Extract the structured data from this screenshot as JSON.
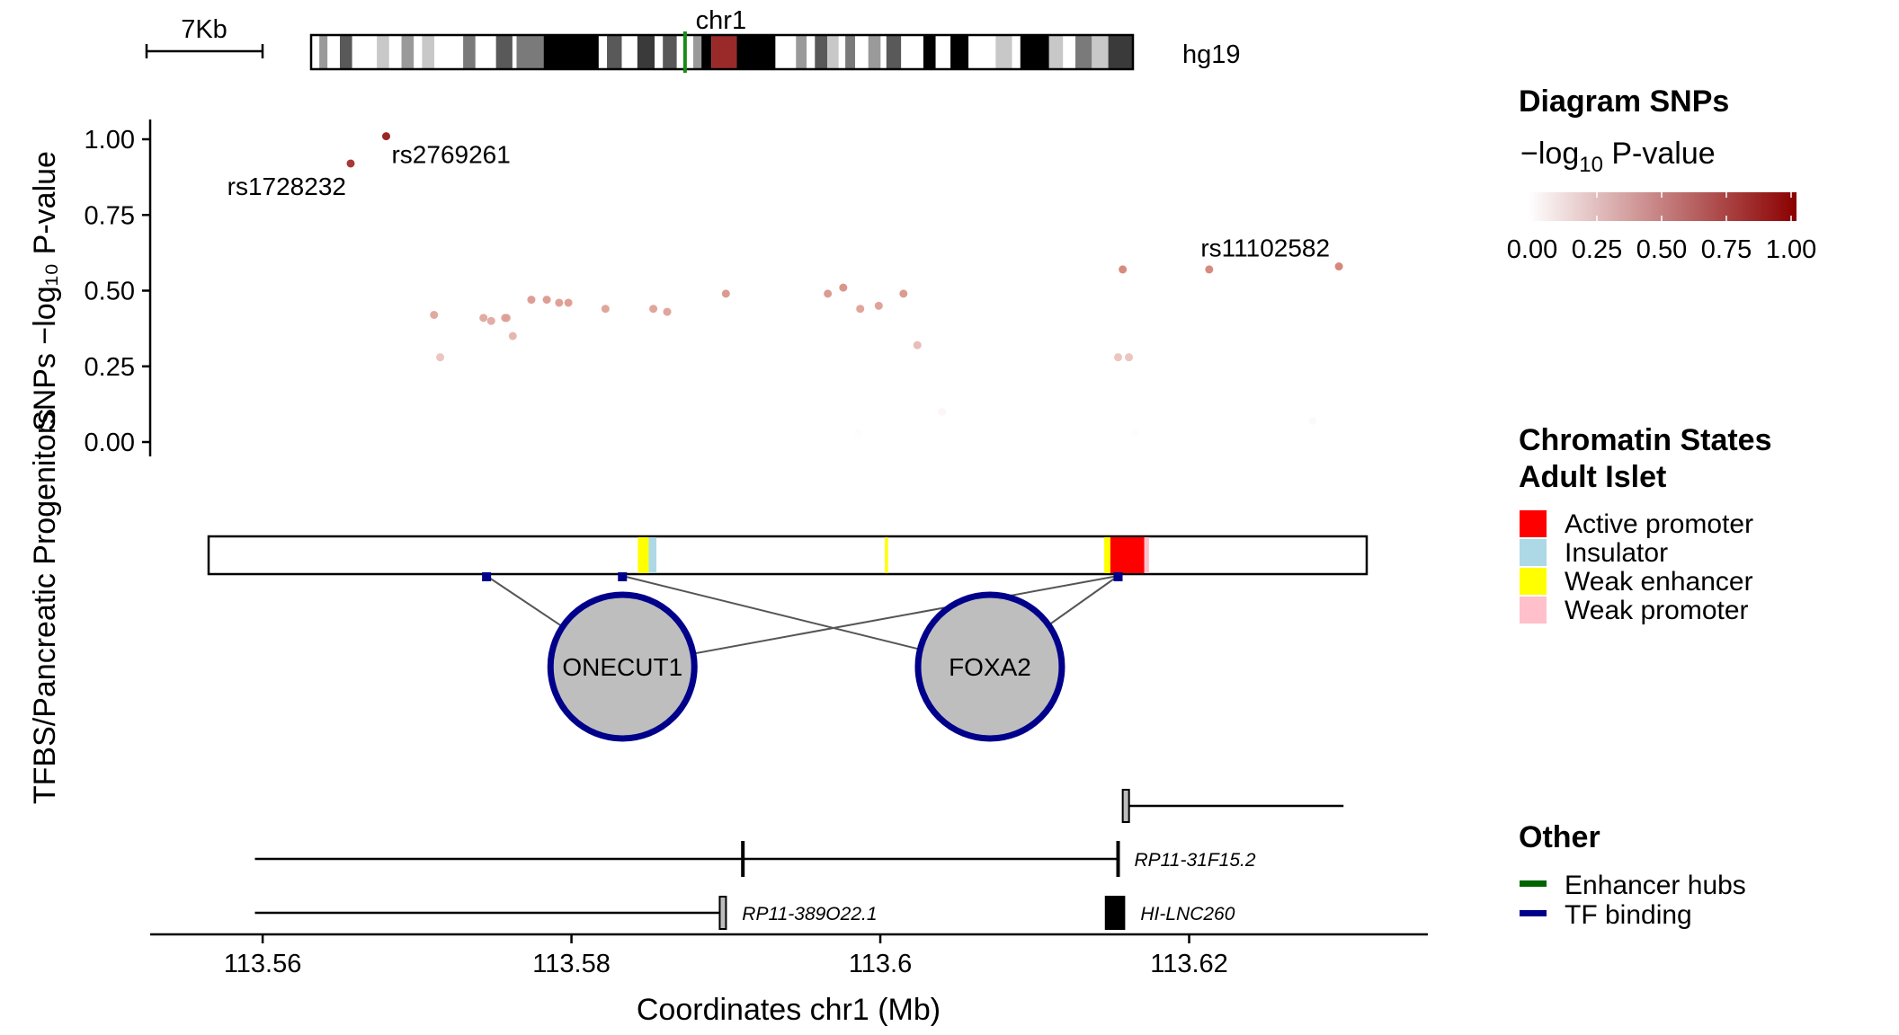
{
  "chart_data": {
    "type": "scatter",
    "ideogram": {
      "chromosome": "chr1",
      "genome": "hg19",
      "scale_bar_label": "7Kb",
      "bands": [
        {
          "s": 0.0,
          "e": 0.01,
          "c": "#ffffff"
        },
        {
          "s": 0.01,
          "e": 0.02,
          "c": "#9a9a9a"
        },
        {
          "s": 0.02,
          "e": 0.035,
          "c": "#ffffff"
        },
        {
          "s": 0.035,
          "e": 0.05,
          "c": "#595959"
        },
        {
          "s": 0.05,
          "e": 0.08,
          "c": "#ffffff"
        },
        {
          "s": 0.08,
          "e": 0.095,
          "c": "#c8c8c8"
        },
        {
          "s": 0.095,
          "e": 0.11,
          "c": "#ffffff"
        },
        {
          "s": 0.11,
          "e": 0.125,
          "c": "#9a9a9a"
        },
        {
          "s": 0.125,
          "e": 0.135,
          "c": "#ffffff"
        },
        {
          "s": 0.135,
          "e": 0.15,
          "c": "#c8c8c8"
        },
        {
          "s": 0.15,
          "e": 0.185,
          "c": "#ffffff"
        },
        {
          "s": 0.185,
          "e": 0.2,
          "c": "#7a7a7a"
        },
        {
          "s": 0.2,
          "e": 0.225,
          "c": "#ffffff"
        },
        {
          "s": 0.225,
          "e": 0.245,
          "c": "#595959"
        },
        {
          "s": 0.245,
          "e": 0.25,
          "c": "#ffffff"
        },
        {
          "s": 0.25,
          "e": 0.283,
          "c": "#7a7a7a"
        },
        {
          "s": 0.283,
          "e": 0.35,
          "c": "#000000"
        },
        {
          "s": 0.35,
          "e": 0.36,
          "c": "#ffffff"
        },
        {
          "s": 0.36,
          "e": 0.378,
          "c": "#595959"
        },
        {
          "s": 0.378,
          "e": 0.397,
          "c": "#ffffff"
        },
        {
          "s": 0.397,
          "e": 0.418,
          "c": "#3a3a3a"
        },
        {
          "s": 0.418,
          "e": 0.428,
          "c": "#ffffff"
        },
        {
          "s": 0.428,
          "e": 0.445,
          "c": "#595959"
        },
        {
          "s": 0.445,
          "e": 0.465,
          "c": "#ffffff"
        },
        {
          "s": 0.465,
          "e": 0.475,
          "c": "#9a9a9a"
        },
        {
          "s": 0.475,
          "e": 0.487,
          "c": "#000000"
        },
        {
          "s": 0.487,
          "e": 0.518,
          "c": "#9a2a2a"
        },
        {
          "s": 0.518,
          "e": 0.565,
          "c": "#000000"
        },
        {
          "s": 0.565,
          "e": 0.59,
          "c": "#ffffff"
        },
        {
          "s": 0.59,
          "e": 0.603,
          "c": "#9a9a9a"
        },
        {
          "s": 0.603,
          "e": 0.613,
          "c": "#ffffff"
        },
        {
          "s": 0.613,
          "e": 0.628,
          "c": "#595959"
        },
        {
          "s": 0.628,
          "e": 0.642,
          "c": "#c8c8c8"
        },
        {
          "s": 0.642,
          "e": 0.65,
          "c": "#ffffff"
        },
        {
          "s": 0.65,
          "e": 0.662,
          "c": "#7a7a7a"
        },
        {
          "s": 0.662,
          "e": 0.678,
          "c": "#ffffff"
        },
        {
          "s": 0.678,
          "e": 0.693,
          "c": "#9a9a9a"
        },
        {
          "s": 0.693,
          "e": 0.7,
          "c": "#ffffff"
        },
        {
          "s": 0.7,
          "e": 0.718,
          "c": "#595959"
        },
        {
          "s": 0.718,
          "e": 0.745,
          "c": "#ffffff"
        },
        {
          "s": 0.745,
          "e": 0.76,
          "c": "#000000"
        },
        {
          "s": 0.76,
          "e": 0.778,
          "c": "#ffffff"
        },
        {
          "s": 0.778,
          "e": 0.8,
          "c": "#000000"
        },
        {
          "s": 0.8,
          "e": 0.833,
          "c": "#ffffff"
        },
        {
          "s": 0.833,
          "e": 0.853,
          "c": "#c8c8c8"
        },
        {
          "s": 0.853,
          "e": 0.863,
          "c": "#ffffff"
        },
        {
          "s": 0.863,
          "e": 0.898,
          "c": "#000000"
        },
        {
          "s": 0.898,
          "e": 0.915,
          "c": "#c8c8c8"
        },
        {
          "s": 0.915,
          "e": 0.93,
          "c": "#ffffff"
        },
        {
          "s": 0.93,
          "e": 0.95,
          "c": "#7a7a7a"
        },
        {
          "s": 0.95,
          "e": 0.97,
          "c": "#c8c8c8"
        },
        {
          "s": 0.97,
          "e": 1.0,
          "c": "#3a3a3a"
        }
      ],
      "marker_fraction": 0.455,
      "marker_color": "#1a8a1a"
    },
    "snp_panel": {
      "ylabel_lines": [
        "TFBS/Pancreatic Progenitors",
        "SNPs −log₁₀ P-value"
      ],
      "yticks": [
        0.0,
        0.25,
        0.5,
        0.75,
        1.0
      ],
      "ytick_labels": [
        "0.00",
        "0.25",
        "0.50",
        "0.75",
        "1.00"
      ],
      "ylim": [
        -0.04,
        1.06
      ],
      "points": [
        {
          "x": 113.5657,
          "y": 0.92,
          "label": "rs1728232"
        },
        {
          "x": 113.568,
          "y": 1.01,
          "label": "rs2769261"
        },
        {
          "x": 113.5711,
          "y": 0.42
        },
        {
          "x": 113.5715,
          "y": 0.28
        },
        {
          "x": 113.5743,
          "y": 0.41
        },
        {
          "x": 113.5748,
          "y": 0.4
        },
        {
          "x": 113.5757,
          "y": 0.41
        },
        {
          "x": 113.5758,
          "y": 0.41
        },
        {
          "x": 113.5762,
          "y": 0.35
        },
        {
          "x": 113.5774,
          "y": 0.47
        },
        {
          "x": 113.5784,
          "y": 0.47
        },
        {
          "x": 113.5792,
          "y": 0.46
        },
        {
          "x": 113.5798,
          "y": 0.46
        },
        {
          "x": 113.5822,
          "y": 0.44
        },
        {
          "x": 113.5853,
          "y": 0.44
        },
        {
          "x": 113.5862,
          "y": 0.43
        },
        {
          "x": 113.59,
          "y": 0.49
        },
        {
          "x": 113.5966,
          "y": 0.49
        },
        {
          "x": 113.5976,
          "y": 0.51
        },
        {
          "x": 113.5987,
          "y": 0.44
        },
        {
          "x": 113.5999,
          "y": 0.45
        },
        {
          "x": 113.6015,
          "y": 0.49
        },
        {
          "x": 113.6024,
          "y": 0.32
        },
        {
          "x": 113.604,
          "y": 0.1
        },
        {
          "x": 113.5986,
          "y": 0.03
        },
        {
          "x": 113.6154,
          "y": 0.28
        },
        {
          "x": 113.6161,
          "y": 0.28
        },
        {
          "x": 113.6157,
          "y": 0.57
        },
        {
          "x": 113.6165,
          "y": 0.03
        },
        {
          "x": 113.6213,
          "y": 0.57
        },
        {
          "x": 113.6297,
          "y": 0.58,
          "label": "rs11102582"
        },
        {
          "x": 113.628,
          "y": 0.07
        }
      ]
    },
    "chromatin_track": {
      "segments": [
        {
          "start": 113.5843,
          "end": 113.585,
          "state": "Weak enhancer"
        },
        {
          "start": 113.585,
          "end": 113.5855,
          "state": "Insulator"
        },
        {
          "start": 113.6003,
          "end": 113.6005,
          "state": "Weak enhancer"
        },
        {
          "start": 113.6145,
          "end": 113.6149,
          "state": "Weak enhancer"
        },
        {
          "start": 113.6149,
          "end": 113.6171,
          "state": "Active promoter"
        },
        {
          "start": 113.6171,
          "end": 113.6174,
          "state": "Weak promoter"
        }
      ]
    },
    "tf_binding": {
      "sites": [
        113.5745,
        113.5833,
        113.6154
      ],
      "factors": [
        {
          "name": "ONECUT1",
          "x": 113.5833
        },
        {
          "name": "FOXA2",
          "x": 113.6071
        }
      ],
      "links": [
        [
          0,
          0
        ],
        [
          1,
          1
        ],
        [
          2,
          0
        ],
        [
          2,
          1
        ]
      ]
    },
    "genes": [
      {
        "row": 0,
        "start": 113.6157,
        "end": 113.63,
        "exons": [
          [
            113.6157,
            113.6161
          ]
        ],
        "strand_label": "",
        "exon_color": "#bdbdbd"
      },
      {
        "row": 1,
        "start": 113.5595,
        "end": 113.6154,
        "ticks": [
          113.5911,
          113.6154
        ],
        "name": "RP11-31F15.2"
      },
      {
        "row": 2,
        "start": 113.5595,
        "end": 113.59,
        "exons": [
          [
            113.5896,
            113.59
          ]
        ],
        "name": "RP11-389O22.1",
        "exon_color": "#bdbdbd"
      },
      {
        "row": 2,
        "start": 113.6146,
        "end": 113.6158,
        "exons": [
          [
            113.6146,
            113.6158
          ]
        ],
        "name": "HI-LNC260",
        "exon_color": "#000000"
      }
    ],
    "x_axis": {
      "label": "Coordinates chr1 (Mb)",
      "ticks": [
        113.56,
        113.58,
        113.6,
        113.62
      ],
      "tick_labels": [
        "113.56",
        "113.58",
        "113.6",
        "113.62"
      ],
      "xlim": [
        113.5565,
        113.6315
      ]
    },
    "legend": {
      "snps": {
        "title": "Diagram SNPs",
        "subtitle_prefix": "−log",
        "subtitle_sub": "10",
        "subtitle_suffix": " P-value",
        "color_low": "#ffffff",
        "color_high": "#8b0000",
        "ticks": [
          "0.00",
          "0.25",
          "0.50",
          "0.75",
          "1.00"
        ]
      },
      "chromatin": {
        "title_line1": "Chromatin States",
        "title_line2": "Adult Islet",
        "entries": [
          {
            "label": "Active promoter",
            "color": "#ff0000"
          },
          {
            "label": "Insulator",
            "color": "#add8e6"
          },
          {
            "label": "Weak enhancer",
            "color": "#ffff00"
          },
          {
            "label": "Weak promoter",
            "color": "#ffc0cb"
          }
        ]
      },
      "other": {
        "title": "Other",
        "entries": [
          {
            "label": "Enhancer hubs",
            "color": "#006400"
          },
          {
            "label": "TF binding",
            "color": "#00008b"
          }
        ]
      }
    }
  }
}
